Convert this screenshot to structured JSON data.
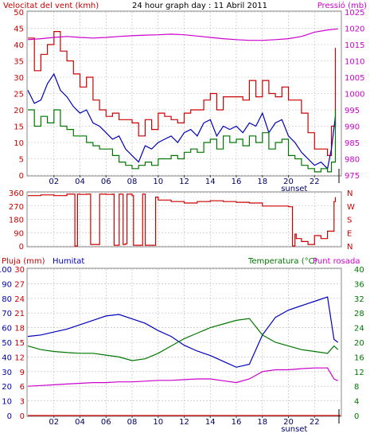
{
  "colors": {
    "red": "#cc0000",
    "blue": "#0000bb",
    "green": "#007700",
    "magenta": "#cc00cc",
    "grid": "#bbbbbb",
    "frame": "#888888"
  },
  "chart_data": [
    {
      "type": "line",
      "title": "24 hour graph day : 11 Abril 2011",
      "left_axis_label": "Velocitat del vent (kmh)",
      "right_axis_label": "Pressió (mb)",
      "ylim": [
        0,
        50
      ],
      "yticks": [
        "0",
        "5",
        "10",
        "15",
        "20",
        "25",
        "30",
        "35",
        "40",
        "45",
        "50"
      ],
      "y2lim": [
        975,
        1025
      ],
      "y2ticks": [
        "975",
        "980",
        "985",
        "990",
        "995",
        "1000",
        "1005",
        "1010",
        "1015",
        "1020",
        "1025"
      ],
      "xlim": [
        0,
        24
      ],
      "xticks": [
        "02",
        "04",
        "06",
        "08",
        "10",
        "12",
        "14",
        "16",
        "18",
        "20",
        "22"
      ],
      "xtick_values": [
        2,
        4,
        6,
        8,
        10,
        12,
        14,
        16,
        18,
        20,
        22
      ],
      "sunset_label": "sunset",
      "sunset_x": 20.2,
      "series": [
        {
          "name": "",
          "color": "red",
          "axis": "left",
          "step": true,
          "x": [
            0,
            0.5,
            1,
            1.5,
            2,
            2.5,
            3,
            3.5,
            4,
            4.5,
            5,
            5.5,
            6,
            6.5,
            7,
            7.5,
            8,
            8.5,
            9,
            9.5,
            10,
            10.5,
            11,
            11.5,
            12,
            12.5,
            13,
            13.5,
            14,
            14.5,
            15,
            15.5,
            16,
            16.5,
            17,
            17.5,
            18,
            18.5,
            19,
            19.5,
            20,
            20.5,
            21,
            21.5,
            22,
            22.5,
            23,
            23.3,
            23.6
          ],
          "y": [
            42,
            32,
            37,
            40,
            44,
            38,
            35,
            31,
            27,
            30,
            23,
            20,
            18,
            19,
            17,
            17,
            16,
            12,
            17,
            14,
            19,
            18,
            17,
            16,
            19,
            20,
            20,
            23,
            25,
            20,
            24,
            24,
            24,
            23,
            29,
            24,
            29,
            25,
            24,
            27,
            23,
            23,
            19,
            13,
            8,
            8,
            6,
            15,
            39
          ]
        },
        {
          "name": "",
          "color": "blue",
          "axis": "left",
          "x": [
            0,
            0.5,
            1,
            1.5,
            2,
            2.5,
            3,
            3.5,
            4,
            4.5,
            5,
            5.5,
            6,
            6.5,
            7,
            7.5,
            8,
            8.5,
            9,
            9.5,
            10,
            10.5,
            11,
            11.5,
            12,
            12.5,
            13,
            13.5,
            14,
            14.5,
            15,
            15.5,
            16,
            16.5,
            17,
            17.5,
            18,
            18.5,
            19,
            19.5,
            20,
            20.5,
            21,
            21.5,
            22,
            22.5,
            23,
            23.3,
            23.6
          ],
          "y": [
            26,
            22,
            23,
            28,
            31,
            26,
            24,
            21,
            19,
            20,
            16,
            15,
            13,
            11,
            12,
            8,
            6,
            4,
            9,
            8,
            10,
            11,
            12,
            10,
            13,
            14,
            12,
            16,
            17,
            12,
            15,
            14,
            15,
            13,
            16,
            15,
            19,
            13,
            16,
            17,
            12,
            10,
            7,
            5,
            3,
            4,
            2,
            8,
            18
          ]
        },
        {
          "name": "",
          "color": "green",
          "axis": "left",
          "step": true,
          "x": [
            0,
            0.5,
            1,
            1.5,
            2,
            2.5,
            3,
            3.5,
            4,
            4.5,
            5,
            5.5,
            6,
            6.5,
            7,
            7.5,
            8,
            8.5,
            9,
            9.5,
            10,
            10.5,
            11,
            11.5,
            12,
            12.5,
            13,
            13.5,
            14,
            14.5,
            15,
            15.5,
            16,
            16.5,
            17,
            17.5,
            18,
            18.5,
            19,
            19.5,
            20,
            20.5,
            21,
            21.5,
            22,
            22.5,
            23,
            23.3,
            23.6
          ],
          "y": [
            20,
            15,
            18,
            16,
            20,
            15,
            14,
            12,
            12,
            10,
            9,
            8,
            8,
            6,
            4,
            3,
            2,
            3,
            4,
            3,
            5,
            5,
            6,
            5,
            7,
            8,
            7,
            10,
            11,
            8,
            12,
            10,
            11,
            9,
            12,
            10,
            13,
            8,
            10,
            11,
            6,
            5,
            3,
            2,
            1,
            2,
            1,
            4,
            20
          ]
        },
        {
          "name": "",
          "color": "magenta",
          "axis": "right",
          "x": [
            0,
            1,
            2,
            3,
            4,
            5,
            6,
            7,
            8,
            9,
            10,
            11,
            12,
            13,
            14,
            15,
            16,
            17,
            18,
            19,
            20,
            21,
            22,
            23,
            23.8
          ],
          "y": [
            1016.5,
            1016.8,
            1017.2,
            1017.5,
            1017.2,
            1017.0,
            1017.2,
            1017.5,
            1017.7,
            1017.9,
            1018.0,
            1018.2,
            1018.0,
            1017.6,
            1017.2,
            1016.8,
            1016.5,
            1016.3,
            1016.3,
            1016.5,
            1016.8,
            1017.5,
            1018.8,
            1019.5,
            1019.8
          ]
        }
      ]
    },
    {
      "type": "line",
      "ylim": [
        0,
        360
      ],
      "yticks": [
        "0",
        "90",
        "180",
        "270",
        "360"
      ],
      "y2ticks": [
        "N",
        "E",
        "S",
        "W",
        "N"
      ],
      "xlim": [
        0,
        24
      ],
      "series": [
        {
          "name": "",
          "color": "red",
          "axis": "left",
          "step": true,
          "x": [
            0,
            1,
            2,
            3,
            3.6,
            3.61,
            3.8,
            3.81,
            4,
            4.5,
            4.81,
            4.82,
            5.5,
            5.51,
            6,
            6.5,
            6.61,
            6.62,
            7,
            7.01,
            7.3,
            7.31,
            7.5,
            7.6,
            7.61,
            8,
            8.1,
            8.11,
            8.8,
            8.81,
            9,
            9.01,
            9.8,
            9.81,
            10,
            11,
            12,
            13,
            14,
            15,
            16,
            17,
            18,
            19,
            20,
            20.31,
            20.5,
            20.6,
            21,
            21.5,
            22,
            22.5,
            23,
            23.5,
            23.6
          ],
          "y": [
            340,
            345,
            340,
            350,
            350,
            0,
            0,
            350,
            348,
            350,
            350,
            10,
            10,
            350,
            348,
            350,
            350,
            5,
            5,
            350,
            350,
            10,
            15,
            15,
            350,
            340,
            340,
            5,
            5,
            350,
            350,
            5,
            5,
            330,
            310,
            300,
            290,
            300,
            305,
            300,
            295,
            290,
            270,
            270,
            265,
            0,
            80,
            50,
            30,
            10,
            70,
            50,
            100,
            300,
            330
          ]
        }
      ]
    },
    {
      "type": "line",
      "left_axis_label": "Pluja (mm)",
      "humidity_label": "Humitat",
      "temp_label": "Temperatura (°C)",
      "dew_label": "Punt rosada",
      "ylim": [
        0,
        30
      ],
      "rain_ticks": [
        "0",
        "3",
        "6",
        "9",
        "12",
        "15",
        "18",
        "21",
        "24",
        "27",
        "30"
      ],
      "hum_ticks": [
        "0",
        "10",
        "20",
        "30",
        "40",
        "50",
        "60",
        "70",
        "80",
        "90",
        "100"
      ],
      "y2lim": [
        0,
        40
      ],
      "y2ticks": [
        "0",
        "4",
        "8",
        "12",
        "16",
        "20",
        "24",
        "28",
        "32",
        "36",
        "40"
      ],
      "xlim": [
        0,
        24
      ],
      "xticks": [
        "02",
        "04",
        "06",
        "08",
        "10",
        "12",
        "14",
        "16",
        "18",
        "20",
        "22"
      ],
      "xtick_values": [
        2,
        4,
        6,
        8,
        10,
        12,
        14,
        16,
        18,
        20,
        22
      ],
      "sunset_label": "sunset",
      "sunset_x": 20.2,
      "series": [
        {
          "name": "",
          "color": "blue",
          "axis": "humidity",
          "x": [
            0,
            1,
            2,
            3,
            4,
            5,
            6,
            7,
            8,
            9,
            10,
            11,
            12,
            13,
            14,
            15,
            16,
            17,
            18,
            19,
            20,
            21,
            22,
            23,
            23.5,
            23.8
          ],
          "y": [
            54,
            55,
            57,
            59,
            62,
            65,
            68,
            69,
            66,
            63,
            58,
            54,
            48,
            44,
            41,
            37,
            33,
            35,
            55,
            67,
            72,
            75,
            78,
            81,
            52,
            50
          ]
        },
        {
          "name": "",
          "color": "green",
          "axis": "right",
          "x": [
            0,
            1,
            2,
            3,
            4,
            5,
            6,
            7,
            8,
            9,
            10,
            11,
            12,
            13,
            14,
            15,
            16,
            17,
            18,
            19,
            20,
            21,
            22,
            23,
            23.5,
            23.8
          ],
          "y": [
            19,
            18,
            17.5,
            17.2,
            17,
            17,
            16.5,
            16,
            15,
            15.5,
            17,
            19,
            21,
            22.5,
            24,
            25,
            26,
            26.5,
            22,
            20,
            19,
            18,
            17.5,
            17,
            19,
            18
          ]
        },
        {
          "name": "",
          "color": "magenta",
          "axis": "right",
          "x": [
            0,
            1,
            2,
            3,
            4,
            5,
            6,
            7,
            8,
            9,
            10,
            11,
            12,
            13,
            14,
            15,
            16,
            17,
            18,
            19,
            20,
            21,
            22,
            23,
            23.5,
            23.8
          ],
          "y": [
            8,
            8.2,
            8.4,
            8.6,
            8.8,
            9,
            9,
            9.2,
            9.2,
            9.4,
            9.6,
            9.6,
            9.8,
            10,
            10,
            9.5,
            9,
            10,
            12,
            12.5,
            12.5,
            12.8,
            13,
            13,
            10,
            9.5
          ]
        },
        {
          "name": "",
          "color": "red",
          "axis": "rain",
          "x": [
            0,
            24
          ],
          "y": [
            0,
            0
          ]
        }
      ]
    }
  ]
}
